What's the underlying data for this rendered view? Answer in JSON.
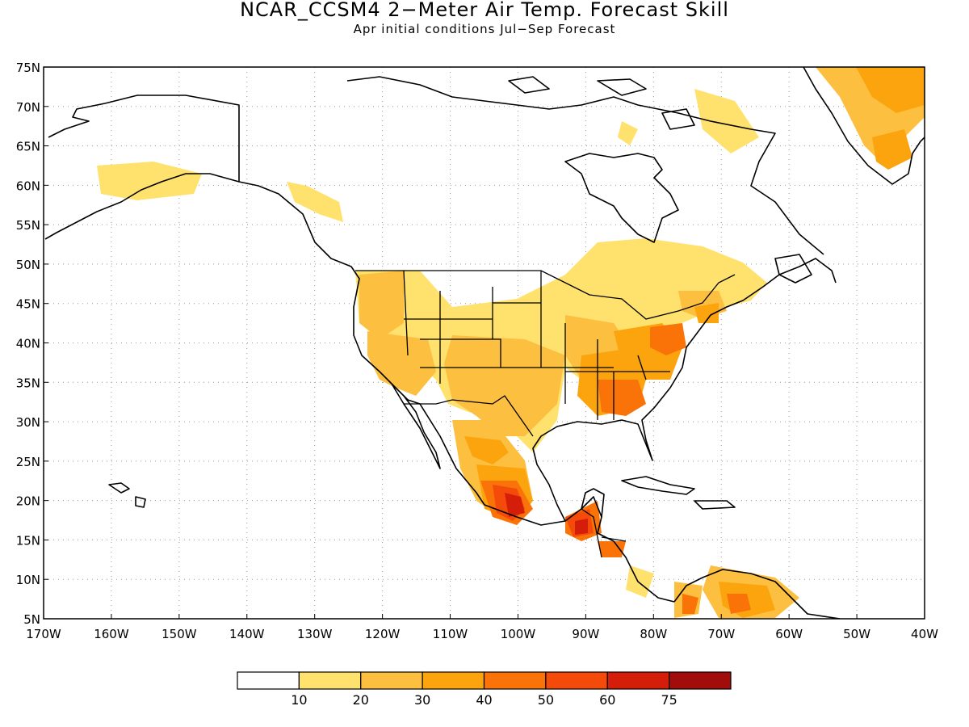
{
  "title": "NCAR_CCSM4 2−Meter Air Temp. Forecast Skill",
  "subtitle": "Apr initial conditions  Jul−Sep Forecast",
  "map": {
    "lon_range": [
      -170,
      -40
    ],
    "lat_range": [
      5,
      75
    ],
    "lon_ticks": [
      "170W",
      "160W",
      "150W",
      "140W",
      "130W",
      "120W",
      "110W",
      "100W",
      "90W",
      "80W",
      "70W",
      "60W",
      "50W",
      "40W"
    ],
    "lat_ticks": [
      "75N",
      "70N",
      "65N",
      "60N",
      "55N",
      "50N",
      "45N",
      "40N",
      "35N",
      "30N",
      "25N",
      "20N",
      "15N",
      "10N",
      "5N"
    ],
    "grid": "dotted"
  },
  "legend": {
    "labels": [
      "10",
      "20",
      "30",
      "40",
      "50",
      "60",
      "75"
    ],
    "colors": [
      "#ffffff",
      "#ffe16e",
      "#fdbf40",
      "#fba40e",
      "#f97309",
      "#f44b0a",
      "#d41e0a",
      "#a00d0a"
    ]
  }
}
